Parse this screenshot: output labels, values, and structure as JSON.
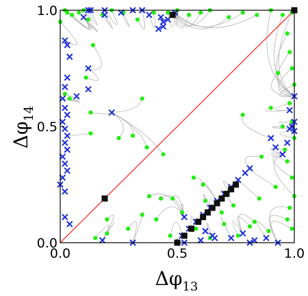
{
  "chart_data": {
    "type": "scatter",
    "xlabel": "Δφ",
    "xlabel_sub": "13",
    "ylabel": "Δφ",
    "ylabel_sub": "14",
    "xlim": [
      0,
      1
    ],
    "ylim": [
      0,
      1
    ],
    "x_ticks": [
      0.0,
      0.5,
      1.0
    ],
    "y_ticks": [
      0.0,
      0.5,
      1.0
    ],
    "x_tick_labels": [
      "0.0",
      "0.5",
      "1.0"
    ],
    "y_tick_labels": [
      "0.0",
      "0.5",
      "1.0"
    ],
    "grid": false,
    "legend": "none",
    "colors": {
      "trajectory": "#b3b3b3",
      "start_point": "#22ee11",
      "end_point": "#1a2bd9",
      "fixed_point": "#111111",
      "diagonal": "#ff2a2a"
    },
    "diagonal": {
      "x": [
        0,
        1
      ],
      "y": [
        0,
        1
      ]
    },
    "fixed_points": {
      "x": [
        0.19,
        0.5,
        0.53,
        0.56,
        0.59,
        0.61,
        0.63,
        0.65,
        0.67,
        0.69,
        0.71,
        0.73,
        0.75,
        0.48,
        1.0
      ],
      "y": [
        0.19,
        0.0,
        0.03,
        0.06,
        0.09,
        0.11,
        0.13,
        0.15,
        0.17,
        0.19,
        0.21,
        0.23,
        0.25,
        0.98,
        1.0
      ]
    },
    "start_points": {
      "x": [
        0.0,
        0.02,
        0.03,
        0.05,
        0.08,
        0.1,
        0.12,
        0.14,
        0.18,
        0.22,
        0.27,
        0.33,
        0.4,
        0.46,
        0.5,
        0.55,
        0.6,
        0.64,
        0.72,
        0.78,
        0.84,
        0.9,
        0.95,
        0.99,
        0.02,
        0.04,
        0.11,
        0.13,
        0.35,
        0.61,
        0.78,
        0.97,
        0.98,
        0.99,
        1.0,
        0.98,
        0.99,
        1.0,
        0.96,
        0.97,
        0.99,
        1.0,
        0.98,
        0.97,
        0.99,
        0.89,
        0.83,
        0.76,
        0.7,
        0.64,
        0.58,
        0.47,
        0.41,
        0.35,
        0.29,
        0.2,
        0.15,
        0.52,
        0.38,
        0.48,
        0.62,
        0.69,
        0.74,
        0.81,
        0.85,
        0.92,
        0.95,
        0.9,
        0.86,
        0.72,
        0.57,
        0.43,
        0.31,
        0.25,
        0.37,
        0.13,
        0.2,
        0.44,
        0.93
      ],
      "y": [
        0.95,
        1.0,
        0.99,
        0.98,
        0.99,
        1.0,
        0.96,
        0.85,
        0.98,
        1.0,
        0.99,
        0.96,
        0.99,
        0.99,
        1.0,
        0.98,
        0.99,
        1.0,
        0.97,
        0.99,
        0.98,
        1.0,
        0.98,
        0.99,
        0.64,
        0.62,
        0.71,
        0.56,
        0.62,
        0.25,
        0.55,
        0.9,
        0.82,
        0.75,
        0.68,
        0.6,
        0.52,
        0.45,
        0.4,
        0.35,
        0.28,
        0.2,
        0.15,
        0.1,
        0.06,
        0.05,
        0.09,
        0.03,
        0.08,
        0.02,
        0.06,
        0.03,
        0.1,
        0.12,
        0.06,
        0.1,
        0.02,
        0.13,
        0.2,
        0.19,
        0.18,
        0.13,
        0.16,
        0.07,
        0.19,
        0.24,
        0.5,
        0.58,
        0.37,
        0.22,
        0.28,
        0.19,
        0.46,
        0.45,
        0.41,
        0.47,
        0.04,
        0.38,
        0.73
      ]
    },
    "end_points": {
      "x": [
        0.02,
        0.03,
        0.04,
        0.01,
        0.02,
        0.03,
        0.01,
        0.02,
        0.03,
        0.02,
        0.03,
        0.01,
        0.02,
        0.03,
        0.01,
        0.0,
        0.02,
        0.1,
        0.12,
        0.13,
        0.19,
        0.19,
        0.26,
        0.31,
        0.35,
        0.38,
        0.42,
        0.44,
        0.46,
        0.49,
        0.43,
        0.44,
        0.52,
        0.55,
        0.58,
        0.61,
        0.64,
        0.67,
        0.7,
        0.73,
        0.76,
        0.79,
        0.81,
        0.53,
        0.6,
        0.65,
        0.73,
        0.81,
        0.88,
        0.93,
        0.97,
        0.98,
        0.99,
        1.0,
        0.95,
        0.92,
        0.9,
        1.0,
        0.98,
        1.0,
        0.03,
        0.07,
        0.22,
        0.02,
        0.04,
        0.02,
        0.12,
        0.18,
        0.31,
        0.53,
        0.56,
        0.62,
        0.66,
        0.78,
        0.83,
        0.12
      ],
      "y": [
        0.87,
        0.85,
        0.8,
        0.62,
        0.58,
        0.55,
        0.52,
        0.49,
        0.46,
        0.43,
        0.4,
        0.37,
        0.34,
        0.31,
        0.28,
        0.25,
        0.22,
        0.97,
        1.0,
        1.0,
        0.98,
        1.0,
        0.99,
        1.0,
        1.0,
        0.98,
        0.92,
        0.95,
        0.96,
        0.99,
        0.97,
        0.93,
        0.03,
        0.06,
        0.09,
        0.12,
        0.15,
        0.18,
        0.21,
        0.24,
        0.27,
        0.3,
        0.32,
        0.0,
        0.01,
        0.03,
        0.02,
        0.0,
        0.02,
        0.0,
        0.43,
        0.49,
        0.5,
        0.52,
        0.38,
        0.41,
        0.45,
        0.63,
        0.57,
        0.48,
        0.71,
        0.63,
        0.56,
        0.11,
        0.08,
        0.67,
        0.75,
        0.01,
        0.0,
        0.11,
        0.06,
        0.05,
        0.02,
        0.04,
        0.01,
        0.66
      ]
    }
  }
}
